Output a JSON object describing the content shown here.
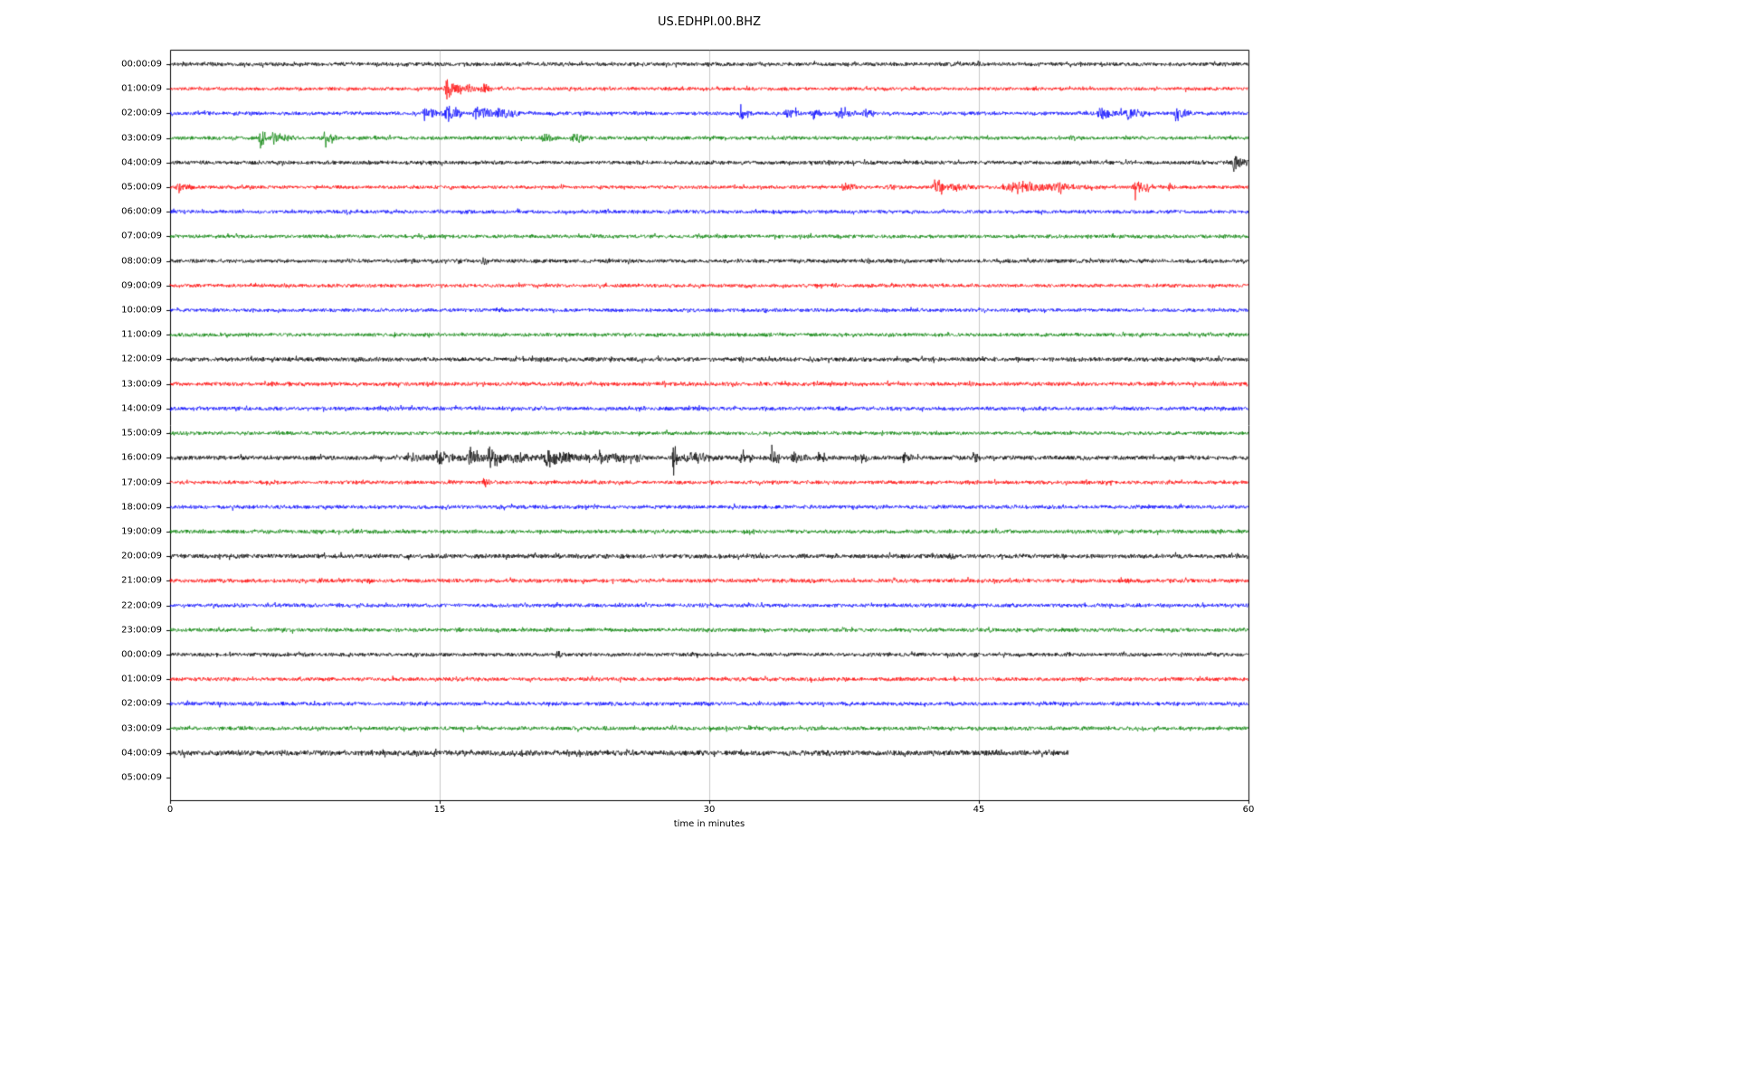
{
  "chart_data": {
    "type": "line",
    "title": "US.EDHPI.00.BHZ",
    "xlabel": "time in minutes",
    "xlim": [
      0,
      60
    ],
    "x_ticks": [
      0,
      15,
      30,
      45,
      60
    ],
    "grid_minutes": [
      15,
      30,
      45
    ],
    "legend": "none",
    "trace_color_cycle": [
      "#000000",
      "#ff0000",
      "#0000ff",
      "#008000"
    ],
    "description": "Helicorder day-plot: 29 one-hour seismogram traces stacked vertically, hourly start times labeled on the y axis; last trace (04:00:09 day 2) stops at 50 minutes; 05:00:09 row is empty.",
    "rows": [
      {
        "label": "00:00:09",
        "color": "#000000",
        "noise": 1.9,
        "end_min": 60,
        "events": []
      },
      {
        "label": "01:00:09",
        "color": "#ff0000",
        "noise": 1.7,
        "end_min": 60,
        "events": [
          {
            "t0": 15.2,
            "t1": 16.3,
            "amp": 12
          },
          {
            "t0": 16.3,
            "t1": 17.2,
            "amp": 5
          },
          {
            "t0": 17.2,
            "t1": 17.9,
            "amp": 10
          }
        ]
      },
      {
        "label": "02:00:09",
        "color": "#0000ff",
        "noise": 1.8,
        "end_min": 60,
        "events": [
          {
            "t0": 14.0,
            "t1": 15.2,
            "amp": 9
          },
          {
            "t0": 15.2,
            "t1": 16.2,
            "amp": 12
          },
          {
            "t0": 16.8,
            "t1": 18.0,
            "amp": 13
          },
          {
            "t0": 18.0,
            "t1": 19.5,
            "amp": 7
          },
          {
            "t0": 31.6,
            "t1": 32.4,
            "amp": 6
          },
          {
            "t0": 34.2,
            "t1": 35.2,
            "amp": 6
          },
          {
            "t0": 35.6,
            "t1": 36.4,
            "amp": 7
          },
          {
            "t0": 37.0,
            "t1": 38.2,
            "amp": 7
          },
          {
            "t0": 38.5,
            "t1": 39.3,
            "amp": 6
          },
          {
            "t0": 51.5,
            "t1": 53.0,
            "amp": 8
          },
          {
            "t0": 53.0,
            "t1": 54.5,
            "amp": 6
          },
          {
            "t0": 55.8,
            "t1": 56.8,
            "amp": 9
          }
        ]
      },
      {
        "label": "03:00:09",
        "color": "#008000",
        "noise": 1.8,
        "end_min": 60,
        "events": [
          {
            "t0": 4.9,
            "t1": 5.5,
            "amp": 16
          },
          {
            "t0": 5.5,
            "t1": 7.0,
            "amp": 6
          },
          {
            "t0": 8.5,
            "t1": 9.3,
            "amp": 14
          },
          {
            "t0": 20.6,
            "t1": 21.6,
            "amp": 5
          },
          {
            "t0": 22.2,
            "t1": 23.4,
            "amp": 6
          }
        ]
      },
      {
        "label": "04:00:09",
        "color": "#000000",
        "noise": 1.9,
        "end_min": 60,
        "events": [
          {
            "t0": 36.5,
            "t1": 37.0,
            "amp": 3
          },
          {
            "t0": 59.0,
            "t1": 60.0,
            "amp": 12
          }
        ]
      },
      {
        "label": "05:00:09",
        "color": "#ff0000",
        "noise": 1.7,
        "end_min": 60,
        "events": [
          {
            "t0": 0.3,
            "t1": 1.3,
            "amp": 7
          },
          {
            "t0": 37.3,
            "t1": 38.3,
            "amp": 5
          },
          {
            "t0": 39.8,
            "t1": 40.8,
            "amp": 4
          },
          {
            "t0": 42.4,
            "t1": 43.1,
            "amp": 18
          },
          {
            "t0": 43.1,
            "t1": 45.0,
            "amp": 4
          },
          {
            "t0": 46.0,
            "t1": 52.0,
            "amp": 5
          },
          {
            "t0": 47.6,
            "t1": 48.4,
            "amp": 7
          },
          {
            "t0": 49.3,
            "t1": 50.2,
            "amp": 7
          },
          {
            "t0": 53.5,
            "t1": 54.6,
            "amp": 9
          },
          {
            "t0": 55.5,
            "t1": 56.0,
            "amp": 4
          }
        ]
      },
      {
        "label": "06:00:09",
        "color": "#0000ff",
        "noise": 1.8,
        "end_min": 60,
        "events": []
      },
      {
        "label": "07:00:09",
        "color": "#008000",
        "noise": 1.8,
        "end_min": 60,
        "events": []
      },
      {
        "label": "08:00:09",
        "color": "#000000",
        "noise": 1.9,
        "end_min": 60,
        "events": [
          {
            "t0": 17.3,
            "t1": 17.8,
            "amp": 6
          }
        ]
      },
      {
        "label": "09:00:09",
        "color": "#ff0000",
        "noise": 1.8,
        "end_min": 60,
        "events": []
      },
      {
        "label": "10:00:09",
        "color": "#0000ff",
        "noise": 1.8,
        "end_min": 60,
        "events": []
      },
      {
        "label": "11:00:09",
        "color": "#008000",
        "noise": 1.8,
        "end_min": 60,
        "events": []
      },
      {
        "label": "12:00:09",
        "color": "#000000",
        "noise": 2.1,
        "end_min": 60,
        "events": []
      },
      {
        "label": "13:00:09",
        "color": "#ff0000",
        "noise": 2.0,
        "end_min": 60,
        "events": []
      },
      {
        "label": "14:00:09",
        "color": "#0000ff",
        "noise": 1.9,
        "end_min": 60,
        "events": []
      },
      {
        "label": "15:00:09",
        "color": "#008000",
        "noise": 1.8,
        "end_min": 60,
        "events": []
      },
      {
        "label": "16:00:09",
        "color": "#000000",
        "noise": 2.2,
        "end_min": 60,
        "events": [
          {
            "t0": 13.0,
            "t1": 14.5,
            "amp": 5
          },
          {
            "t0": 14.5,
            "t1": 16.5,
            "amp": 8
          },
          {
            "t0": 16.5,
            "t1": 17.5,
            "amp": 12
          },
          {
            "t0": 17.5,
            "t1": 19.0,
            "amp": 13
          },
          {
            "t0": 19.0,
            "t1": 20.5,
            "amp": 7
          },
          {
            "t0": 20.5,
            "t1": 23.5,
            "amp": 9
          },
          {
            "t0": 23.5,
            "t1": 26.5,
            "amp": 6
          },
          {
            "t0": 27.9,
            "t1": 28.3,
            "amp": 24
          },
          {
            "t0": 28.3,
            "t1": 31.0,
            "amp": 6
          },
          {
            "t0": 31.5,
            "t1": 32.5,
            "amp": 5
          },
          {
            "t0": 33.3,
            "t1": 33.9,
            "amp": 20
          },
          {
            "t0": 34.5,
            "t1": 35.5,
            "amp": 6
          },
          {
            "t0": 36.0,
            "t1": 36.6,
            "amp": 8
          },
          {
            "t0": 38.0,
            "t1": 39.0,
            "amp": 4
          },
          {
            "t0": 40.7,
            "t1": 41.3,
            "amp": 8
          },
          {
            "t0": 44.6,
            "t1": 45.1,
            "amp": 6
          }
        ]
      },
      {
        "label": "17:00:09",
        "color": "#ff0000",
        "noise": 1.8,
        "end_min": 60,
        "events": [
          {
            "t0": 17.4,
            "t1": 17.8,
            "amp": 7
          }
        ]
      },
      {
        "label": "18:00:09",
        "color": "#0000ff",
        "noise": 1.9,
        "end_min": 60,
        "events": []
      },
      {
        "label": "19:00:09",
        "color": "#008000",
        "noise": 1.9,
        "end_min": 60,
        "events": []
      },
      {
        "label": "20:00:09",
        "color": "#000000",
        "noise": 2.2,
        "end_min": 60,
        "events": [
          {
            "t0": 43.2,
            "t1": 43.8,
            "amp": 3
          }
        ]
      },
      {
        "label": "21:00:09",
        "color": "#ff0000",
        "noise": 2.0,
        "end_min": 60,
        "events": []
      },
      {
        "label": "22:00:09",
        "color": "#0000ff",
        "noise": 1.9,
        "end_min": 60,
        "events": []
      },
      {
        "label": "23:00:09",
        "color": "#008000",
        "noise": 1.9,
        "end_min": 60,
        "events": []
      },
      {
        "label": "00:00:09",
        "color": "#000000",
        "noise": 1.9,
        "end_min": 60,
        "events": [
          {
            "t0": 21.4,
            "t1": 21.8,
            "amp": 6
          }
        ]
      },
      {
        "label": "01:00:09",
        "color": "#ff0000",
        "noise": 1.9,
        "end_min": 60,
        "events": []
      },
      {
        "label": "02:00:09",
        "color": "#0000ff",
        "noise": 1.9,
        "end_min": 60,
        "events": []
      },
      {
        "label": "03:00:09",
        "color": "#008000",
        "noise": 1.9,
        "end_min": 60,
        "events": []
      },
      {
        "label": "04:00:09",
        "color": "#000000",
        "noise": 2.6,
        "end_min": 50,
        "events": []
      },
      {
        "label": "05:00:09",
        "color": "#ff0000",
        "noise": 0,
        "end_min": 0,
        "events": []
      }
    ]
  }
}
